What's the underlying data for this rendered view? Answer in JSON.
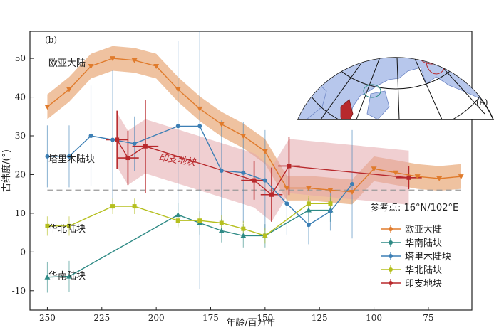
{
  "chart_data": {
    "type": "line",
    "panel_b_label": "(b)",
    "panel_a_label": "(a)",
    "xlabel": "年龄/百万年",
    "ylabel": "古纬度/(°)",
    "x_reversed": true,
    "xlim": [
      258,
      55
    ],
    "ylim": [
      -15,
      57
    ],
    "x_ticks": [
      250,
      225,
      200,
      175,
      150,
      125,
      100,
      75
    ],
    "y_ticks": [
      -10,
      0,
      10,
      20,
      30,
      40,
      50
    ],
    "reference_note": "参考点: 16°N/102°E",
    "reference_latitude": 16,
    "region_labels": {
      "eurasia": "欧亚大陆",
      "tarim": "塔里木陆块",
      "indochina": "印支地块",
      "north_china": "华北陆块",
      "south_china": "华南陆块"
    },
    "series": [
      {
        "name": "欧亚大陆",
        "color": "#e07b2c",
        "band_color": "#e8a878",
        "x": [
          250,
          240,
          230,
          220,
          210,
          200,
          190,
          180,
          170,
          160,
          150,
          140,
          130,
          120,
          110,
          100,
          90,
          80,
          70,
          60
        ],
        "y": [
          37.5,
          42,
          48,
          50,
          49.5,
          48,
          42,
          37,
          33,
          30,
          26,
          16.5,
          16.5,
          16,
          15.5,
          21.5,
          20.5,
          19.5,
          19,
          19.5
        ],
        "band_halfwidth": 3.2
      },
      {
        "name": "华南陆块",
        "color": "#2e8a85",
        "x": [
          250,
          240,
          190,
          180,
          170,
          160,
          150,
          130,
          120
        ],
        "y": [
          -6.5,
          -6.3,
          9.6,
          7.5,
          5.5,
          4.2,
          4.2,
          10.8,
          10.8
        ],
        "err": [
          4,
          4,
          3,
          3,
          3,
          3,
          3,
          3,
          3
        ]
      },
      {
        "name": "塔里木陆块",
        "color": "#3c7fb5",
        "x": [
          250,
          240,
          230,
          220,
          210,
          190,
          180,
          170,
          160,
          150,
          140,
          130,
          120,
          110
        ],
        "y": [
          24.7,
          24.7,
          30,
          29,
          28,
          32.5,
          32.5,
          21,
          20.5,
          18.5,
          12.5,
          7,
          10.5,
          17.5
        ],
        "err": [
          8,
          8,
          13,
          18,
          7,
          22,
          42,
          13,
          13,
          13,
          8,
          5,
          5,
          14
        ]
      },
      {
        "name": "华北陆块",
        "color": "#b5bf1e",
        "x": [
          250,
          240,
          220,
          210,
          190,
          180,
          170,
          160,
          150,
          130,
          120
        ],
        "y": [
          6.7,
          6.7,
          11.8,
          11.8,
          8.1,
          8.1,
          7.5,
          6,
          4.2,
          12.5,
          12.5
        ],
        "err": [
          2.5,
          2.5,
          2,
          2,
          2,
          2,
          2,
          2,
          2,
          2,
          2
        ]
      },
      {
        "name": "印支地块",
        "color": "#b8292c",
        "band_color": "#e3a7ab",
        "x": [
          218,
          213,
          205,
          155,
          147,
          139,
          84
        ],
        "y": [
          29,
          24.3,
          27.3,
          18.5,
          14.8,
          22.2,
          19.2
        ],
        "yerr": [
          7.5,
          7,
          12,
          5,
          7,
          7.5,
          3
        ],
        "xerr": [
          5,
          5,
          6,
          6,
          5,
          5,
          6
        ],
        "band_halfwidth": 7
      }
    ],
    "legend": {
      "placement": "lower-right",
      "entries": [
        "欧亚大陆",
        "华南陆块",
        "塔里木陆块",
        "华北陆块",
        "印支地块"
      ]
    }
  }
}
